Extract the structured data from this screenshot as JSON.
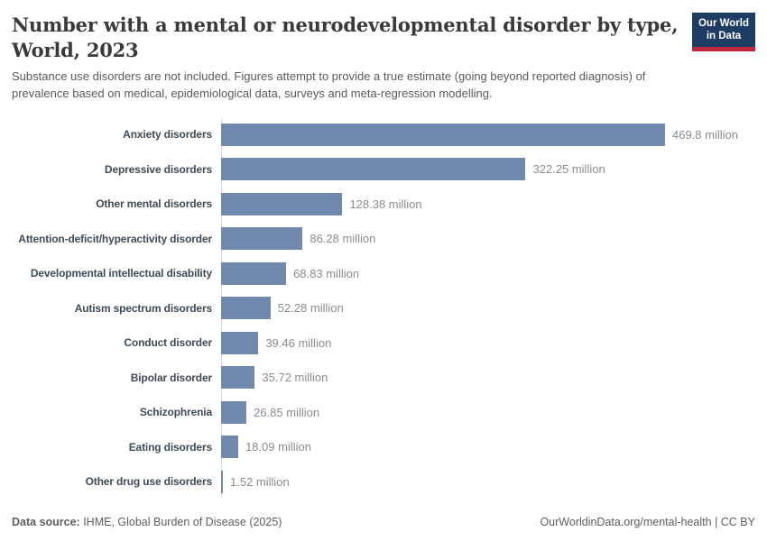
{
  "header": {
    "title": "Number with a mental or neurodevelopmental disorder by type, World, 2023",
    "subtitle": "Substance use disorders are not included. Figures attempt to provide a true estimate (going beyond reported diagnosis) of prevalence based on medical, epidemiological data, surveys and meta-regression modelling.",
    "logo": {
      "line1": "Our World",
      "line2": "in Data",
      "bg_color": "#1d3d63",
      "accent_color": "#c0273e"
    }
  },
  "chart_data": {
    "type": "bar",
    "orientation": "horizontal",
    "title": "Number with a mental or neurodevelopmental disorder by type, World, 2023",
    "unit": "million people",
    "grid": false,
    "xlim": [
      0,
      500
    ],
    "bar_color": "#7289ae",
    "categories": [
      "Anxiety disorders",
      "Depressive disorders",
      "Other mental disorders",
      "Attention-deficit/hyperactivity disorder",
      "Developmental intellectual disability",
      "Autism spectrum disorders",
      "Conduct disorder",
      "Bipolar disorder",
      "Schizophrenia",
      "Eating disorders",
      "Other drug use disorders"
    ],
    "values": [
      469.8,
      322.25,
      128.38,
      86.28,
      68.83,
      52.28,
      39.46,
      35.72,
      26.85,
      18.09,
      1.52
    ],
    "value_labels": [
      "469.8 million",
      "322.25 million",
      "128.38 million",
      "86.28 million",
      "68.83 million",
      "52.28 million",
      "39.46 million",
      "35.72 million",
      "26.85 million",
      "18.09 million",
      "1.52 million"
    ]
  },
  "footer": {
    "source_label": "Data source:",
    "source_text": " IHME, Global Burden of Disease (2025)",
    "right_text": "OurWorldinData.org/mental-health | CC BY"
  }
}
